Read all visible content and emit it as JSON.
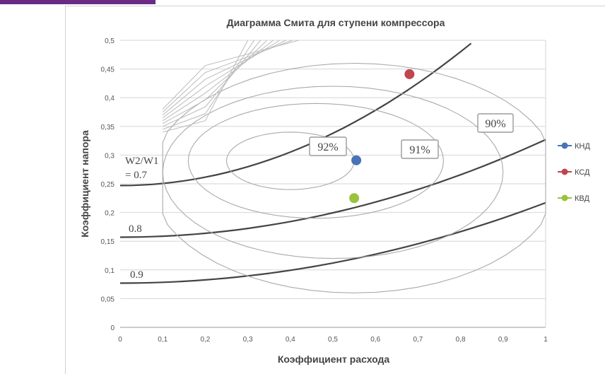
{
  "chart_data": {
    "type": "scatter",
    "title": "Диаграмма Смита для ступени компрессора",
    "xlabel": "Коэффициент расхода",
    "ylabel": "Коэффициент напора",
    "xlim": [
      0,
      1
    ],
    "ylim": [
      0,
      0.5
    ],
    "x_ticks": [
      "0",
      "0,1",
      "0,2",
      "0,3",
      "0,4",
      "0,5",
      "0,6",
      "0,7",
      "0,8",
      "0,9",
      "1"
    ],
    "y_ticks": [
      "0",
      "0,05",
      "0,1",
      "0,15",
      "0,2",
      "0,25",
      "0,3",
      "0,35",
      "0,4",
      "0,45",
      "0,5"
    ],
    "grid": "horizontal",
    "legend_position": "right",
    "series": [
      {
        "name": "КНД",
        "color": "#4a72b8",
        "x": [
          0.555
        ],
        "y": [
          0.291
        ]
      },
      {
        "name": "КСД",
        "color": "#c0454f",
        "x": [
          0.68
        ],
        "y": [
          0.441
        ]
      },
      {
        "name": "КВД",
        "color": "#9ac23c",
        "x": [
          0.55
        ],
        "y": [
          0.225
        ]
      }
    ],
    "annotations": {
      "w_ratio_07_line1": "W2/W1",
      "w_ratio_07_line2": "= 0.7",
      "w_ratio_08": "0.8",
      "w_ratio_09": "0.9",
      "eff_92": "92%",
      "eff_91": "91%",
      "eff_90": "90%"
    }
  },
  "decor": {
    "accent_color": "#6a2a86"
  }
}
